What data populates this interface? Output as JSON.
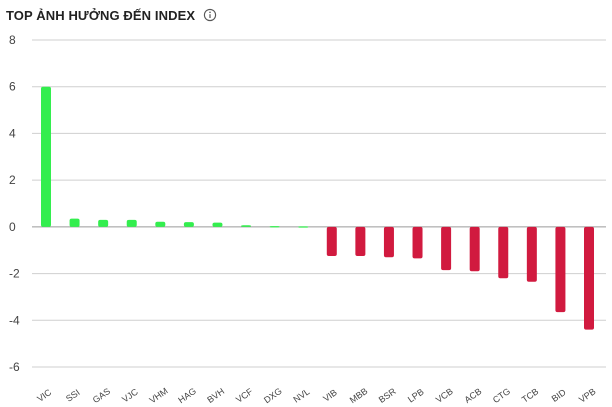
{
  "header": {
    "title": "TOP ẢNH HƯỞNG ĐẾN INDEX",
    "info_icon": "info-circle-icon"
  },
  "colors": {
    "positive": "#33ee4e",
    "negative": "#d11a3f",
    "grid": "#cfcfcf",
    "zero_line": "#9a9a9a"
  },
  "chart_data": {
    "type": "bar",
    "title": "TOP ẢNH HƯỞNG ĐẾN INDEX",
    "xlabel": "",
    "ylabel": "",
    "ylim": [
      -6,
      8
    ],
    "yticks": [
      "8",
      "6",
      "4",
      "2",
      "0",
      "-2",
      "-4",
      "-6"
    ],
    "grid": true,
    "categories": [
      "VIC",
      "SSI",
      "GAS",
      "VJC",
      "VHM",
      "HAG",
      "BVH",
      "VCF",
      "DXG",
      "NVL",
      "VIB",
      "MBB",
      "BSR",
      "LPB",
      "VCB",
      "ACB",
      "CTG",
      "TCB",
      "BID",
      "VPB"
    ],
    "values": [
      6.0,
      0.35,
      0.3,
      0.3,
      0.22,
      0.2,
      0.18,
      0.07,
      0.03,
      0.02,
      -1.25,
      -1.25,
      -1.3,
      -1.35,
      -1.85,
      -1.9,
      -2.2,
      -2.35,
      -3.65,
      -4.4
    ]
  }
}
